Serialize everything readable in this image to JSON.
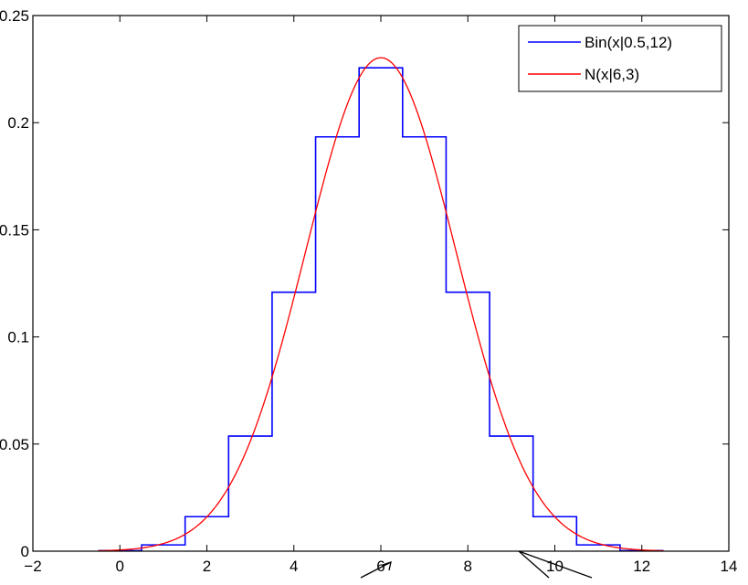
{
  "chart_data": {
    "type": "line",
    "title": "",
    "xlabel": "",
    "ylabel": "",
    "xlim": [
      -2,
      14
    ],
    "ylim": [
      0,
      0.25
    ],
    "x_ticks": [
      -2,
      0,
      2,
      4,
      6,
      8,
      10,
      12,
      14
    ],
    "x_tick_labels": [
      "−2",
      "0",
      "2",
      "4",
      "6",
      "8",
      "10",
      "12",
      "14"
    ],
    "y_ticks": [
      0,
      0.05,
      0.1,
      0.15,
      0.2,
      0.25
    ],
    "y_tick_labels": [
      "0",
      "0.05",
      "0.1",
      "0.15",
      "0.2",
      "0.25"
    ],
    "grid": false,
    "legend_position": "top-right",
    "series": [
      {
        "name": "Bin(x|0.5,12)",
        "style": "step",
        "color": "#0000ff",
        "x": [
          0,
          1,
          2,
          3,
          4,
          5,
          6,
          7,
          8,
          9,
          10,
          11,
          12
        ],
        "values": [
          0.000244,
          0.00293,
          0.01611,
          0.05371,
          0.12085,
          0.19336,
          0.22559,
          0.19336,
          0.12085,
          0.05371,
          0.01611,
          0.00293,
          0.000244
        ]
      },
      {
        "name": "N(x|6,3)",
        "style": "line",
        "color": "#ff0000",
        "mean": 6,
        "variance": 3,
        "x_range": [
          -0.5,
          12.5
        ]
      }
    ]
  }
}
